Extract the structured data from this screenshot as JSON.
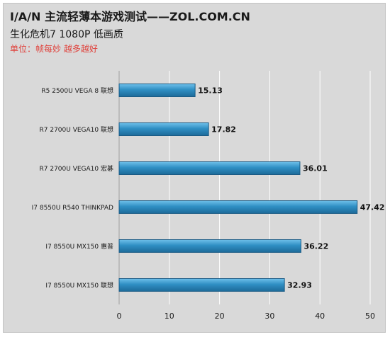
{
  "title": "I/A/N 主流轻薄本游戏测试——ZOL.COM.CN",
  "subtitle": "生化危机7 1080P 低画质",
  "unit_note": "单位：帧每妙 越多越好",
  "chart_data": {
    "type": "bar",
    "orientation": "horizontal",
    "categories": [
      "R5 2500U VEGA 8  联想",
      "R7 2700U VEGA10 联想",
      "R7 2700U VEGA10 宏碁",
      "I7 8550U R540 THINKPAD",
      "I7 8550U MX150 惠普",
      "I7 8550U MX150 联想"
    ],
    "values": [
      15.13,
      17.82,
      36.01,
      47.42,
      36.22,
      32.93
    ],
    "xlim": [
      0,
      50
    ],
    "xticks": [
      0,
      10,
      20,
      30,
      40,
      50
    ],
    "grid": true,
    "bar_color": "#2f8fc4",
    "bar_edge_color": "#1b5c86"
  }
}
